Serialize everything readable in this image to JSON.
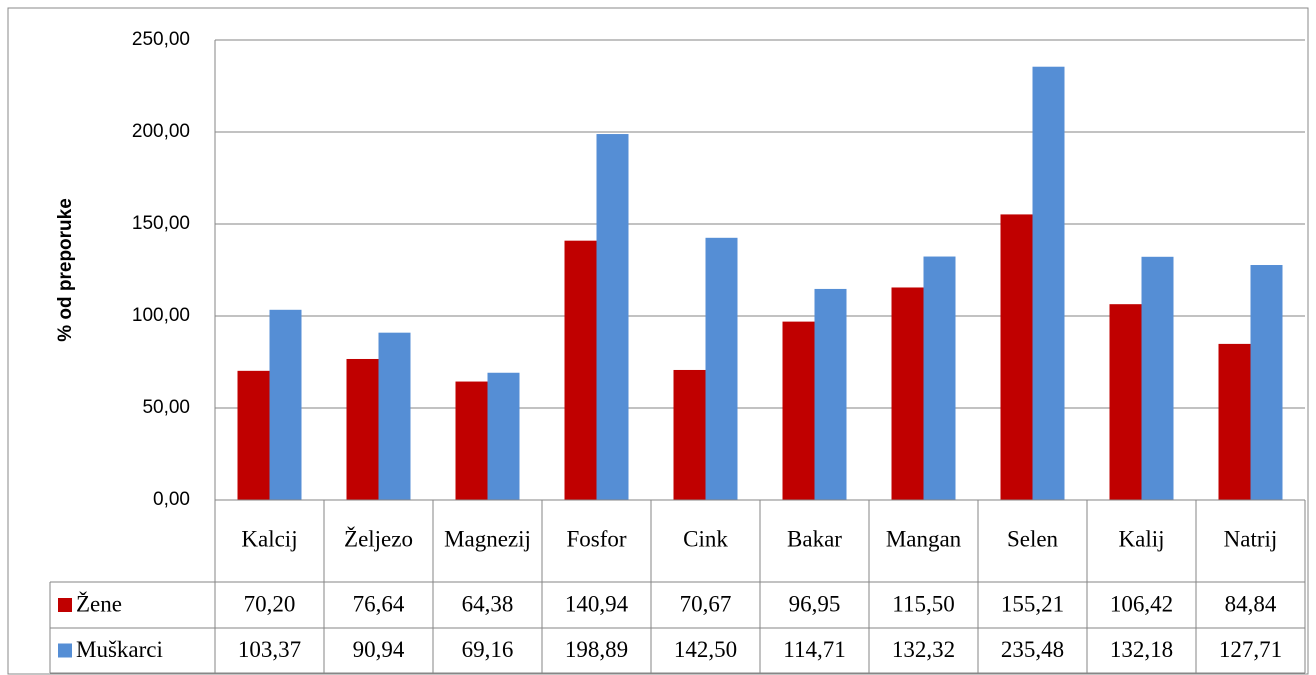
{
  "chart_data": {
    "type": "bar",
    "ylabel": "% od preporuke",
    "categories": [
      "Kalcij",
      "Željezo",
      "Magnezij",
      "Fosfor",
      "Cink",
      "Bakar",
      "Mangan",
      "Selen",
      "Kalij",
      "Natrij"
    ],
    "series": [
      {
        "name": "Žene",
        "color": "#c00000",
        "values": [
          70.2,
          76.64,
          64.38,
          140.94,
          70.67,
          96.95,
          115.5,
          155.21,
          106.42,
          84.84
        ],
        "value_labels": [
          "70,20",
          "76,64",
          "64,38",
          "140,94",
          "70,67",
          "96,95",
          "115,50",
          "155,21",
          "106,42",
          "84,84"
        ]
      },
      {
        "name": "Muškarci",
        "color": "#558ed5",
        "values": [
          103.37,
          90.94,
          69.16,
          198.89,
          142.5,
          114.71,
          132.32,
          235.48,
          132.18,
          127.71
        ],
        "value_labels": [
          "103,37",
          "90,94",
          "69,16",
          "198,89",
          "142,50",
          "114,71",
          "132,32",
          "235,48",
          "132,18",
          "127,71"
        ]
      }
    ],
    "ylim": [
      0,
      250
    ],
    "yticks": [
      {
        "value": 0,
        "label": "0,00"
      },
      {
        "value": 50,
        "label": "50,00"
      },
      {
        "value": 100,
        "label": "100,00"
      },
      {
        "value": 150,
        "label": "150,00"
      },
      {
        "value": 200,
        "label": "200,00"
      },
      {
        "value": 250,
        "label": "250,00"
      }
    ],
    "grid": true
  }
}
